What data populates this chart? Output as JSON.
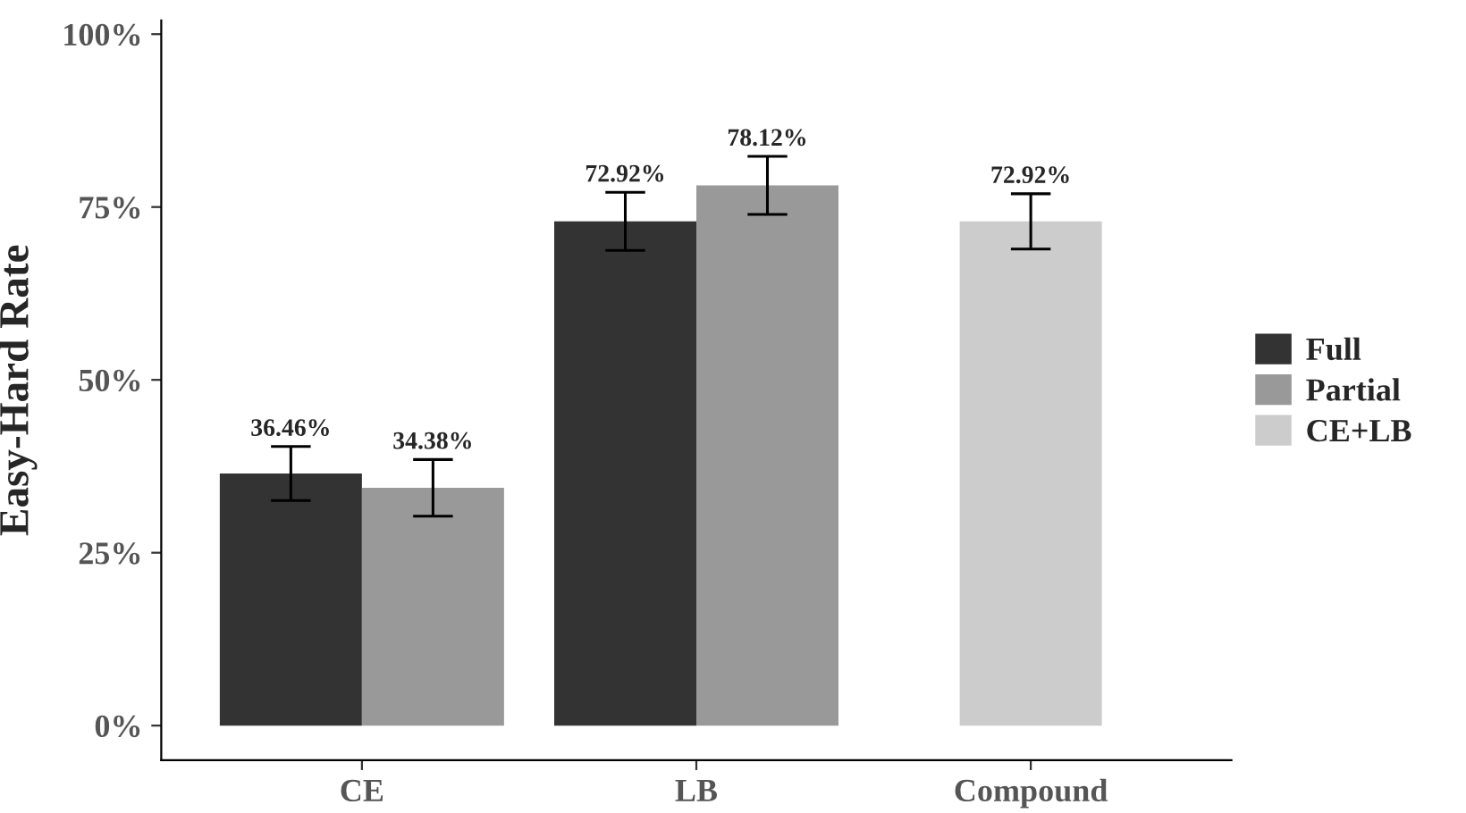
{
  "chart_data": {
    "type": "bar",
    "ylabel": "Easy-Hard Rate",
    "categories": [
      "CE",
      "LB",
      "Compound"
    ],
    "series": [
      {
        "name": "Full",
        "color": "#333333",
        "values": [
          36.46,
          72.92,
          null
        ],
        "errors": [
          3.9,
          4.2,
          null
        ],
        "value_labels": [
          "36.46%",
          "72.92%",
          null
        ]
      },
      {
        "name": "Partial",
        "color": "#999999",
        "values": [
          34.38,
          78.12,
          null
        ],
        "errors": [
          4.1,
          4.2,
          null
        ],
        "value_labels": [
          "34.38%",
          "78.12%",
          null
        ]
      },
      {
        "name": "CE+LB",
        "color": "#cccccc",
        "values": [
          null,
          null,
          72.92
        ],
        "errors": [
          null,
          null,
          4.0
        ],
        "value_labels": [
          null,
          null,
          "72.92%"
        ]
      }
    ],
    "ylim": [
      -5,
      102
    ],
    "yticks": [
      {
        "value": 0,
        "label": "0%"
      },
      {
        "value": 25,
        "label": "25%"
      },
      {
        "value": 50,
        "label": "50%"
      },
      {
        "value": 75,
        "label": "75%"
      },
      {
        "value": 100,
        "label": "100%"
      }
    ],
    "grid": false,
    "legend": "right"
  }
}
